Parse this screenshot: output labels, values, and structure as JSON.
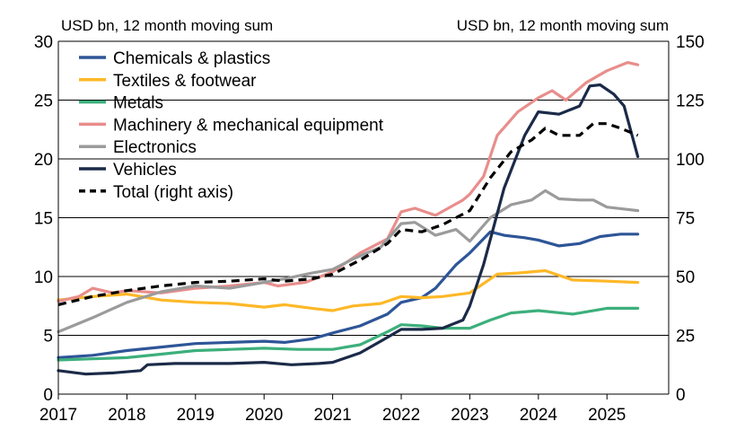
{
  "chart_data": {
    "type": "line",
    "left_axis_label": "USD bn, 12 month moving sum",
    "right_axis_label": "USD bn, 12 month moving sum",
    "ylim_left": [
      0,
      30
    ],
    "ylim_right": [
      0,
      150
    ],
    "yticks_left": [
      "0",
      "5",
      "10",
      "15",
      "20",
      "25",
      "30"
    ],
    "yticks_right": [
      "0",
      "25",
      "50",
      "75",
      "100",
      "125",
      "150"
    ],
    "xticks": [
      "2017",
      "2018",
      "2019",
      "2020",
      "2021",
      "2022",
      "2023",
      "2024",
      "2025"
    ],
    "xlim": [
      2017.0,
      2025.9
    ],
    "grid": "horizontal",
    "legend_position": "top-left",
    "series": [
      {
        "name": "Chemicals & plastics",
        "axis": "left",
        "color": "#2E5597",
        "dash": "solid",
        "points": [
          [
            2017.0,
            3.1
          ],
          [
            2017.5,
            3.3
          ],
          [
            2018.0,
            3.7
          ],
          [
            2018.5,
            4.0
          ],
          [
            2019.0,
            4.3
          ],
          [
            2019.5,
            4.4
          ],
          [
            2020.0,
            4.5
          ],
          [
            2020.3,
            4.4
          ],
          [
            2020.7,
            4.7
          ],
          [
            2021.0,
            5.2
          ],
          [
            2021.4,
            5.8
          ],
          [
            2021.8,
            6.8
          ],
          [
            2022.0,
            7.8
          ],
          [
            2022.3,
            8.2
          ],
          [
            2022.5,
            9.0
          ],
          [
            2022.8,
            11.0
          ],
          [
            2023.0,
            12.0
          ],
          [
            2023.3,
            13.8
          ],
          [
            2023.5,
            13.5
          ],
          [
            2023.8,
            13.3
          ],
          [
            2024.0,
            13.1
          ],
          [
            2024.3,
            12.6
          ],
          [
            2024.6,
            12.8
          ],
          [
            2024.9,
            13.4
          ],
          [
            2025.2,
            13.6
          ],
          [
            2025.45,
            13.6
          ]
        ]
      },
      {
        "name": "Textiles & footwear",
        "axis": "left",
        "color": "#FDB827",
        "dash": "solid",
        "points": [
          [
            2017.0,
            8.0
          ],
          [
            2017.5,
            8.3
          ],
          [
            2018.0,
            8.5
          ],
          [
            2018.5,
            8.0
          ],
          [
            2019.0,
            7.8
          ],
          [
            2019.5,
            7.7
          ],
          [
            2020.0,
            7.4
          ],
          [
            2020.3,
            7.6
          ],
          [
            2020.7,
            7.3
          ],
          [
            2021.0,
            7.1
          ],
          [
            2021.3,
            7.5
          ],
          [
            2021.7,
            7.7
          ],
          [
            2022.0,
            8.3
          ],
          [
            2022.3,
            8.2
          ],
          [
            2022.6,
            8.3
          ],
          [
            2023.0,
            8.6
          ],
          [
            2023.4,
            10.2
          ],
          [
            2023.7,
            10.3
          ],
          [
            2024.1,
            10.5
          ],
          [
            2024.5,
            9.7
          ],
          [
            2025.0,
            9.6
          ],
          [
            2025.45,
            9.5
          ]
        ]
      },
      {
        "name": "Metals",
        "axis": "left",
        "color": "#3DAF7C",
        "dash": "solid",
        "points": [
          [
            2017.0,
            2.9
          ],
          [
            2017.5,
            3.0
          ],
          [
            2018.0,
            3.1
          ],
          [
            2018.5,
            3.4
          ],
          [
            2019.0,
            3.7
          ],
          [
            2019.5,
            3.8
          ],
          [
            2020.0,
            3.9
          ],
          [
            2020.5,
            3.8
          ],
          [
            2021.0,
            3.8
          ],
          [
            2021.4,
            4.2
          ],
          [
            2021.8,
            5.3
          ],
          [
            2022.0,
            5.9
          ],
          [
            2022.3,
            5.8
          ],
          [
            2022.6,
            5.6
          ],
          [
            2023.0,
            5.6
          ],
          [
            2023.3,
            6.3
          ],
          [
            2023.6,
            6.9
          ],
          [
            2024.0,
            7.1
          ],
          [
            2024.5,
            6.8
          ],
          [
            2025.0,
            7.3
          ],
          [
            2025.45,
            7.3
          ]
        ]
      },
      {
        "name": "Machinery & mechanical equipment",
        "axis": "left",
        "color": "#E88E8C",
        "dash": "solid",
        "points": [
          [
            2017.0,
            7.9
          ],
          [
            2017.3,
            8.3
          ],
          [
            2017.5,
            9.0
          ],
          [
            2017.8,
            8.6
          ],
          [
            2018.0,
            8.8
          ],
          [
            2018.5,
            8.6
          ],
          [
            2019.0,
            9.0
          ],
          [
            2019.5,
            9.2
          ],
          [
            2020.0,
            9.5
          ],
          [
            2020.2,
            9.2
          ],
          [
            2020.6,
            9.5
          ],
          [
            2021.0,
            10.4
          ],
          [
            2021.4,
            12.0
          ],
          [
            2021.8,
            13.2
          ],
          [
            2022.0,
            15.5
          ],
          [
            2022.2,
            15.8
          ],
          [
            2022.5,
            15.2
          ],
          [
            2022.9,
            16.5
          ],
          [
            2023.0,
            17.0
          ],
          [
            2023.2,
            18.5
          ],
          [
            2023.4,
            22.0
          ],
          [
            2023.7,
            24.0
          ],
          [
            2024.0,
            25.2
          ],
          [
            2024.2,
            25.8
          ],
          [
            2024.4,
            25.0
          ],
          [
            2024.7,
            26.5
          ],
          [
            2025.0,
            27.5
          ],
          [
            2025.3,
            28.2
          ],
          [
            2025.45,
            28.0
          ]
        ]
      },
      {
        "name": "Electronics",
        "axis": "left",
        "color": "#9B9B9B",
        "dash": "solid",
        "points": [
          [
            2017.0,
            5.3
          ],
          [
            2017.5,
            6.5
          ],
          [
            2018.0,
            7.8
          ],
          [
            2018.5,
            8.7
          ],
          [
            2019.0,
            9.2
          ],
          [
            2019.5,
            9.0
          ],
          [
            2020.0,
            9.5
          ],
          [
            2020.3,
            9.8
          ],
          [
            2020.7,
            10.3
          ],
          [
            2021.0,
            10.6
          ],
          [
            2021.3,
            11.5
          ],
          [
            2021.7,
            12.5
          ],
          [
            2022.0,
            14.5
          ],
          [
            2022.2,
            14.6
          ],
          [
            2022.5,
            13.5
          ],
          [
            2022.8,
            14.0
          ],
          [
            2023.0,
            13.0
          ],
          [
            2023.3,
            15.0
          ],
          [
            2023.6,
            16.1
          ],
          [
            2023.9,
            16.5
          ],
          [
            2024.1,
            17.3
          ],
          [
            2024.3,
            16.6
          ],
          [
            2024.6,
            16.5
          ],
          [
            2024.8,
            16.5
          ],
          [
            2025.0,
            15.9
          ],
          [
            2025.3,
            15.7
          ],
          [
            2025.45,
            15.6
          ]
        ]
      },
      {
        "name": "Vehicles",
        "axis": "left",
        "color": "#1B2A48",
        "dash": "solid",
        "points": [
          [
            2017.0,
            2.0
          ],
          [
            2017.4,
            1.7
          ],
          [
            2017.8,
            1.8
          ],
          [
            2018.2,
            2.0
          ],
          [
            2018.3,
            2.5
          ],
          [
            2018.7,
            2.6
          ],
          [
            2019.0,
            2.6
          ],
          [
            2019.5,
            2.6
          ],
          [
            2020.0,
            2.7
          ],
          [
            2020.4,
            2.5
          ],
          [
            2020.8,
            2.6
          ],
          [
            2021.0,
            2.7
          ],
          [
            2021.4,
            3.5
          ],
          [
            2021.7,
            4.5
          ],
          [
            2022.0,
            5.5
          ],
          [
            2022.3,
            5.5
          ],
          [
            2022.6,
            5.6
          ],
          [
            2022.9,
            6.3
          ],
          [
            2023.0,
            7.5
          ],
          [
            2023.2,
            11.0
          ],
          [
            2023.5,
            17.5
          ],
          [
            2023.8,
            22.0
          ],
          [
            2024.0,
            24.0
          ],
          [
            2024.3,
            23.8
          ],
          [
            2024.6,
            24.5
          ],
          [
            2024.75,
            26.2
          ],
          [
            2024.9,
            26.3
          ],
          [
            2025.1,
            25.5
          ],
          [
            2025.25,
            24.5
          ],
          [
            2025.45,
            20.2
          ]
        ]
      },
      {
        "name": "Total (right axis)",
        "axis": "right",
        "color": "#000000",
        "dash": "dashed",
        "points": [
          [
            2017.0,
            38
          ],
          [
            2017.5,
            41.5
          ],
          [
            2018.0,
            44
          ],
          [
            2018.5,
            46
          ],
          [
            2019.0,
            47.5
          ],
          [
            2019.5,
            48
          ],
          [
            2020.0,
            49
          ],
          [
            2020.3,
            48
          ],
          [
            2020.7,
            49
          ],
          [
            2021.0,
            51
          ],
          [
            2021.4,
            57
          ],
          [
            2021.8,
            64
          ],
          [
            2022.0,
            70
          ],
          [
            2022.3,
            69
          ],
          [
            2022.6,
            72
          ],
          [
            2023.0,
            78
          ],
          [
            2023.3,
            92
          ],
          [
            2023.6,
            103
          ],
          [
            2023.9,
            108
          ],
          [
            2024.1,
            113
          ],
          [
            2024.3,
            110
          ],
          [
            2024.6,
            110
          ],
          [
            2024.8,
            115
          ],
          [
            2025.0,
            115
          ],
          [
            2025.2,
            113
          ],
          [
            2025.45,
            110
          ]
        ]
      }
    ]
  }
}
